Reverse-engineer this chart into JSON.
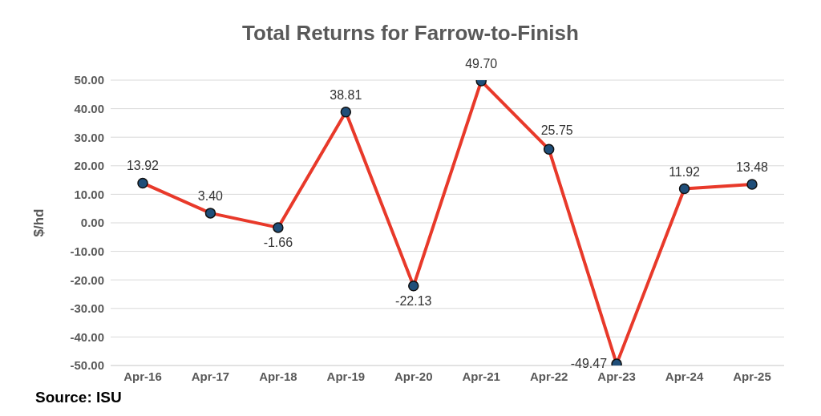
{
  "chart_data": {
    "type": "line",
    "title": "Total Returns for Farrow-to-Finish",
    "ylabel": "$/hd",
    "categories": [
      "Apr-16",
      "Apr-17",
      "Apr-18",
      "Apr-19",
      "Apr-20",
      "Apr-21",
      "Apr-22",
      "Apr-23",
      "Apr-24",
      "Apr-25"
    ],
    "series": [
      {
        "color": "#e8392a",
        "values": [
          13.92,
          3.4,
          -1.66,
          38.81,
          -22.13,
          49.7,
          25.75,
          -49.47,
          11.92,
          13.48
        ],
        "value_labels": [
          "13.92",
          "3.40",
          "-1.66",
          "38.81",
          "-22.13",
          "49.70",
          "25.75",
          "-49.47",
          "11.92",
          "13.48"
        ]
      }
    ],
    "ylim": [
      -50,
      50
    ],
    "yticks": [
      {
        "value": -50,
        "label": "-50.00"
      },
      {
        "value": -40,
        "label": "-40.00"
      },
      {
        "value": -30,
        "label": "-30.00"
      },
      {
        "value": -20,
        "label": "-20.00"
      },
      {
        "value": -10,
        "label": "-10.00"
      },
      {
        "value": 0,
        "label": "0.00"
      },
      {
        "value": 10,
        "label": "10.00"
      },
      {
        "value": 20,
        "label": "20.00"
      },
      {
        "value": 30,
        "label": "30.00"
      },
      {
        "value": 40,
        "label": "40.00"
      },
      {
        "value": 50,
        "label": "50.00"
      }
    ],
    "grid": "y",
    "legend": false,
    "marker": "circle",
    "line_style": "solid",
    "annotations": [
      "Source: ISU"
    ]
  }
}
